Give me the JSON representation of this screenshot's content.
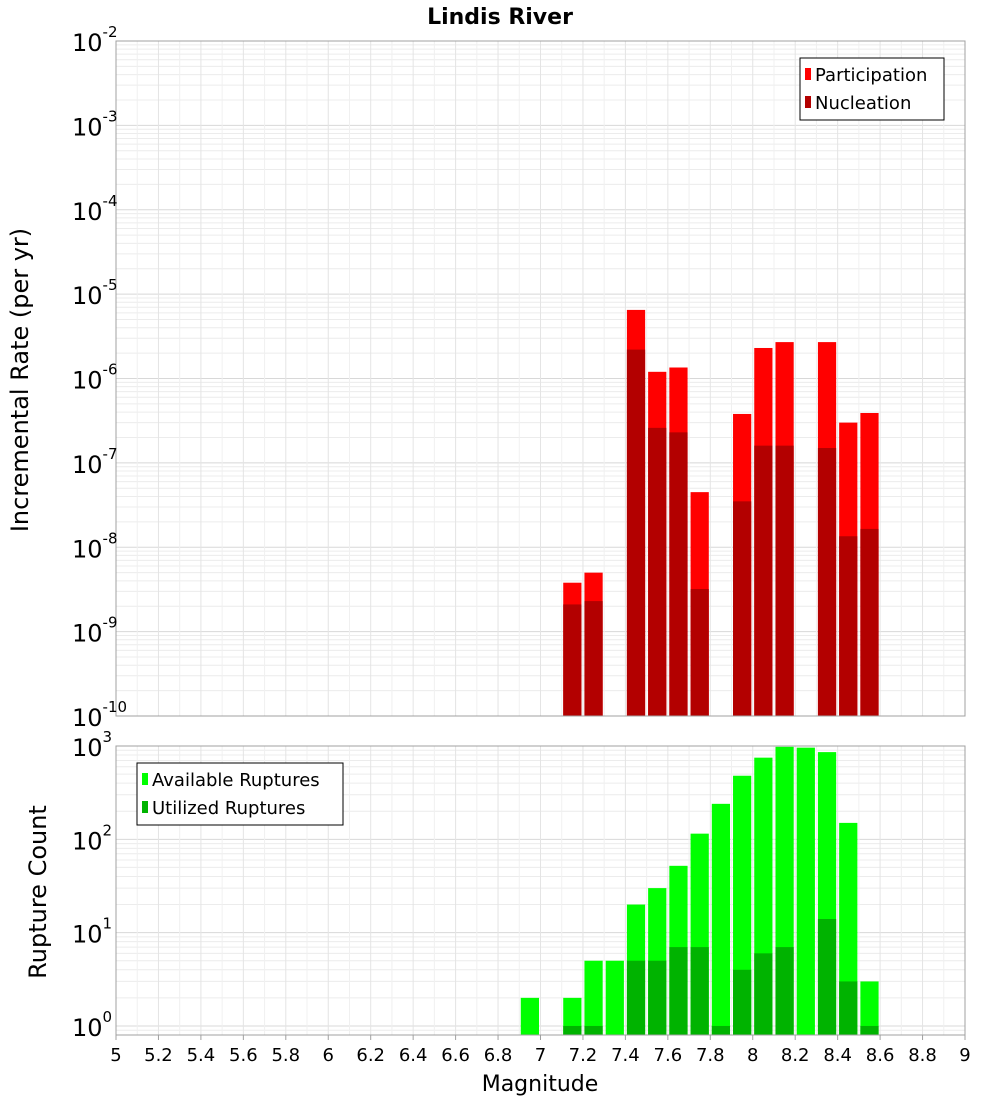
{
  "chart_data": [
    {
      "type": "bar",
      "title": "Lindis River",
      "ylabel": "Incremental Rate (per yr)",
      "y_scale": "log",
      "ylim": [
        1e-10,
        0.01
      ],
      "xlim": [
        5,
        9
      ],
      "legend_position": "top-right",
      "grid": true,
      "bin_width": 0.1,
      "series": [
        {
          "name": "Participation",
          "color": "#ff0000",
          "points": [
            {
              "x": 7.15,
              "y": 3.8e-09
            },
            {
              "x": 7.25,
              "y": 5e-09
            },
            {
              "x": 7.45,
              "y": 6.5e-06
            },
            {
              "x": 7.55,
              "y": 1.2e-06
            },
            {
              "x": 7.65,
              "y": 1.35e-06
            },
            {
              "x": 7.75,
              "y": 4.5e-08
            },
            {
              "x": 7.95,
              "y": 3.8e-07
            },
            {
              "x": 8.05,
              "y": 2.3e-06
            },
            {
              "x": 8.15,
              "y": 2.7e-06
            },
            {
              "x": 8.35,
              "y": 2.7e-06
            },
            {
              "x": 8.45,
              "y": 3e-07
            },
            {
              "x": 8.55,
              "y": 3.9e-07
            }
          ]
        },
        {
          "name": "Nucleation",
          "color": "#b30000",
          "points": [
            {
              "x": 7.15,
              "y": 2.1e-09
            },
            {
              "x": 7.25,
              "y": 2.3e-09
            },
            {
              "x": 7.45,
              "y": 2.2e-06
            },
            {
              "x": 7.55,
              "y": 2.6e-07
            },
            {
              "x": 7.65,
              "y": 2.3e-07
            },
            {
              "x": 7.75,
              "y": 3.2e-09
            },
            {
              "x": 7.95,
              "y": 3.5e-08
            },
            {
              "x": 8.05,
              "y": 1.6e-07
            },
            {
              "x": 8.15,
              "y": 1.6e-07
            },
            {
              "x": 8.35,
              "y": 1.5e-07
            },
            {
              "x": 8.45,
              "y": 1.35e-08
            },
            {
              "x": 8.55,
              "y": 1.65e-08
            }
          ]
        }
      ]
    },
    {
      "type": "bar",
      "xlabel": "Magnitude",
      "ylabel": "Rupture Count",
      "y_scale": "log",
      "ylim": [
        0.8,
        1000
      ],
      "xlim": [
        5,
        9
      ],
      "xticks": [
        "5",
        "5.2",
        "5.4",
        "5.6",
        "5.8",
        "6",
        "6.2",
        "6.4",
        "6.6",
        "6.8",
        "7",
        "7.2",
        "7.4",
        "7.6",
        "7.8",
        "8",
        "8.2",
        "8.4",
        "8.6",
        "8.8",
        "9"
      ],
      "legend_position": "top-left",
      "grid": true,
      "bin_width": 0.1,
      "series": [
        {
          "name": "Available Ruptures",
          "color": "#00ff00",
          "points": [
            {
              "x": 6.95,
              "y": 2
            },
            {
              "x": 7.15,
              "y": 2
            },
            {
              "x": 7.25,
              "y": 5
            },
            {
              "x": 7.35,
              "y": 5
            },
            {
              "x": 7.45,
              "y": 20
            },
            {
              "x": 7.55,
              "y": 30
            },
            {
              "x": 7.65,
              "y": 52
            },
            {
              "x": 7.75,
              "y": 115
            },
            {
              "x": 7.85,
              "y": 240
            },
            {
              "x": 7.95,
              "y": 480
            },
            {
              "x": 8.05,
              "y": 750
            },
            {
              "x": 8.15,
              "y": 980
            },
            {
              "x": 8.25,
              "y": 960
            },
            {
              "x": 8.35,
              "y": 860
            },
            {
              "x": 8.45,
              "y": 150
            },
            {
              "x": 8.55,
              "y": 3
            }
          ]
        },
        {
          "name": "Utilized Ruptures",
          "color": "#00b300",
          "points": [
            {
              "x": 7.15,
              "y": 1
            },
            {
              "x": 7.25,
              "y": 1
            },
            {
              "x": 7.45,
              "y": 5
            },
            {
              "x": 7.55,
              "y": 5
            },
            {
              "x": 7.65,
              "y": 7
            },
            {
              "x": 7.75,
              "y": 7
            },
            {
              "x": 7.85,
              "y": 1
            },
            {
              "x": 7.95,
              "y": 4
            },
            {
              "x": 8.05,
              "y": 6
            },
            {
              "x": 8.15,
              "y": 7
            },
            {
              "x": 8.35,
              "y": 14
            },
            {
              "x": 8.45,
              "y": 3
            },
            {
              "x": 8.55,
              "y": 1
            }
          ]
        }
      ]
    }
  ]
}
